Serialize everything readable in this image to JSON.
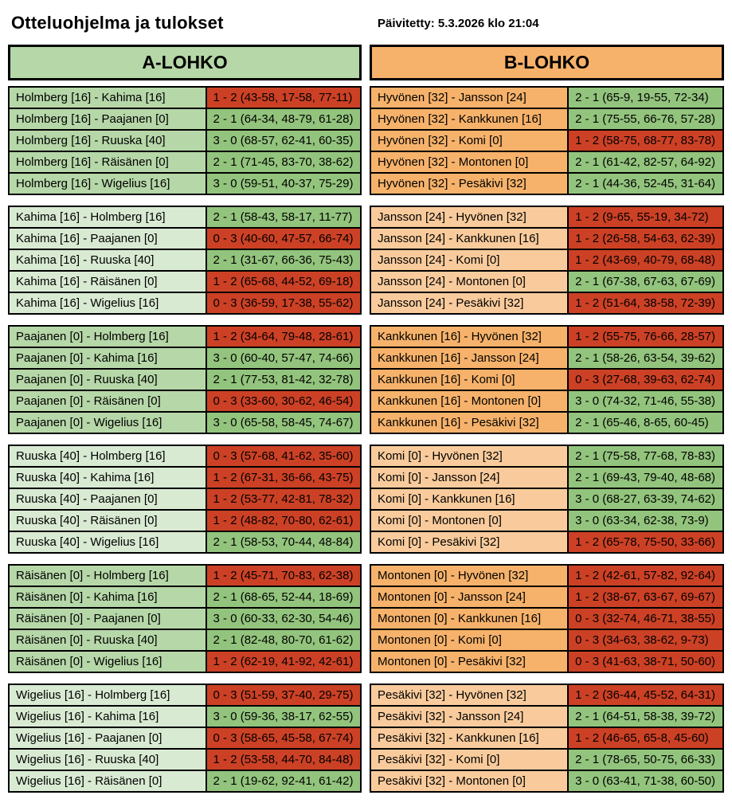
{
  "page": {
    "title": "Otteluohjelma ja tulokset",
    "updated": "Päivitetty: 5.3.2026 klo 21:04"
  },
  "colors": {
    "group_a_strong": "#b6d7a8",
    "group_a_light": "#d9ead3",
    "group_b_strong": "#f6b26b",
    "group_b_light": "#f9cb9c",
    "win_bg": "#93c47d",
    "loss_bg": "#cc4125",
    "border": "#000000",
    "text": "#000000"
  },
  "groups": [
    {
      "name": "A-LOHKO",
      "blocks": [
        {
          "rows": [
            {
              "match": "Holmberg [16] - Kahima [16]",
              "result": "1 - 2 (43-58, 17-58, 77-11)",
              "outcome": "loss"
            },
            {
              "match": "Holmberg [16] - Paajanen [0]",
              "result": "2 - 1 (64-34, 48-79, 61-28)",
              "outcome": "win"
            },
            {
              "match": "Holmberg [16] - Ruuska [40]",
              "result": "3 - 0 (68-57, 62-41, 60-35)",
              "outcome": "win"
            },
            {
              "match": "Holmberg [16] - Räisänen [0]",
              "result": "2 - 1 (71-45, 83-70, 38-62)",
              "outcome": "win"
            },
            {
              "match": "Holmberg [16] - Wigelius [16]",
              "result": "3 - 0 (59-51, 40-37, 75-29)",
              "outcome": "win"
            }
          ]
        },
        {
          "rows": [
            {
              "match": "Kahima [16] - Holmberg [16]",
              "result": "2 - 1 (58-43, 58-17, 11-77)",
              "outcome": "win"
            },
            {
              "match": "Kahima [16] - Paajanen [0]",
              "result": "0 - 3 (40-60, 47-57, 66-74)",
              "outcome": "loss"
            },
            {
              "match": "Kahima [16] - Ruuska [40]",
              "result": "2 - 1 (31-67, 66-36, 75-43)",
              "outcome": "win"
            },
            {
              "match": "Kahima [16] - Räisänen [0]",
              "result": "1 - 2 (65-68, 44-52, 69-18)",
              "outcome": "loss"
            },
            {
              "match": "Kahima [16] - Wigelius [16]",
              "result": "0 - 3 (36-59, 17-38, 55-62)",
              "outcome": "loss"
            }
          ]
        },
        {
          "rows": [
            {
              "match": "Paajanen [0] - Holmberg [16]",
              "result": "1 - 2 (34-64, 79-48, 28-61)",
              "outcome": "loss"
            },
            {
              "match": "Paajanen [0] - Kahima [16]",
              "result": "3 - 0 (60-40, 57-47, 74-66)",
              "outcome": "win"
            },
            {
              "match": "Paajanen [0] - Ruuska [40]",
              "result": "2 - 1 (77-53, 81-42, 32-78)",
              "outcome": "win"
            },
            {
              "match": "Paajanen [0] - Räisänen [0]",
              "result": "0 - 3 (33-60, 30-62, 46-54)",
              "outcome": "loss"
            },
            {
              "match": "Paajanen [0] - Wigelius [16]",
              "result": "3 - 0 (65-58, 58-45, 74-67)",
              "outcome": "win"
            }
          ]
        },
        {
          "rows": [
            {
              "match": "Ruuska [40] - Holmberg [16]",
              "result": "0 - 3 (57-68, 41-62, 35-60)",
              "outcome": "loss"
            },
            {
              "match": "Ruuska [40] - Kahima [16]",
              "result": "1 - 2 (67-31, 36-66, 43-75)",
              "outcome": "loss"
            },
            {
              "match": "Ruuska [40] - Paajanen [0]",
              "result": "1 - 2 (53-77, 42-81, 78-32)",
              "outcome": "loss"
            },
            {
              "match": "Ruuska [40] - Räisänen [0]",
              "result": "1 - 2 (48-82, 70-80, 62-61)",
              "outcome": "loss"
            },
            {
              "match": "Ruuska [40] - Wigelius [16]",
              "result": "2 - 1 (58-53, 70-44, 48-84)",
              "outcome": "win"
            }
          ]
        },
        {
          "rows": [
            {
              "match": "Räisänen [0] - Holmberg [16]",
              "result": "1 - 2 (45-71, 70-83, 62-38)",
              "outcome": "loss"
            },
            {
              "match": "Räisänen [0] - Kahima [16]",
              "result": "2 - 1 (68-65, 52-44, 18-69)",
              "outcome": "win"
            },
            {
              "match": "Räisänen [0] - Paajanen [0]",
              "result": "3 - 0 (60-33, 62-30, 54-46)",
              "outcome": "win"
            },
            {
              "match": "Räisänen [0] - Ruuska [40]",
              "result": "2 - 1 (82-48, 80-70, 61-62)",
              "outcome": "win"
            },
            {
              "match": "Räisänen [0] - Wigelius [16]",
              "result": "1 - 2 (62-19, 41-92, 42-61)",
              "outcome": "loss"
            }
          ]
        },
        {
          "rows": [
            {
              "match": "Wigelius [16] - Holmberg [16]",
              "result": "0 - 3 (51-59, 37-40, 29-75)",
              "outcome": "loss"
            },
            {
              "match": "Wigelius [16] - Kahima [16]",
              "result": "3 - 0 (59-36, 38-17, 62-55)",
              "outcome": "win"
            },
            {
              "match": "Wigelius [16] - Paajanen [0]",
              "result": "0 - 3 (58-65, 45-58, 67-74)",
              "outcome": "loss"
            },
            {
              "match": "Wigelius [16] - Ruuska [40]",
              "result": "1 - 2 (53-58, 44-70, 84-48)",
              "outcome": "loss"
            },
            {
              "match": "Wigelius [16] - Räisänen [0]",
              "result": "2 - 1 (19-62, 92-41, 61-42)",
              "outcome": "win"
            }
          ]
        }
      ]
    },
    {
      "name": "B-LOHKO",
      "blocks": [
        {
          "rows": [
            {
              "match": "Hyvönen [32] - Jansson [24]",
              "result": "2 - 1 (65-9, 19-55, 72-34)",
              "outcome": "win"
            },
            {
              "match": "Hyvönen [32] - Kankkunen [16]",
              "result": "2 - 1 (75-55, 66-76, 57-28)",
              "outcome": "win"
            },
            {
              "match": "Hyvönen [32] - Komi [0]",
              "result": "1 - 2 (58-75, 68-77, 83-78)",
              "outcome": "loss"
            },
            {
              "match": "Hyvönen [32] - Montonen [0]",
              "result": "2 - 1 (61-42, 82-57, 64-92)",
              "outcome": "win"
            },
            {
              "match": "Hyvönen [32] - Pesäkivi [32]",
              "result": "2 - 1 (44-36, 52-45, 31-64)",
              "outcome": "win"
            }
          ]
        },
        {
          "rows": [
            {
              "match": "Jansson [24] - Hyvönen [32]",
              "result": "1 - 2 (9-65, 55-19, 34-72)",
              "outcome": "loss"
            },
            {
              "match": "Jansson [24] - Kankkunen [16]",
              "result": "1 - 2 (26-58, 54-63, 62-39)",
              "outcome": "loss"
            },
            {
              "match": "Jansson [24] - Komi [0]",
              "result": "1 - 2 (43-69, 40-79, 68-48)",
              "outcome": "loss"
            },
            {
              "match": "Jansson [24] - Montonen [0]",
              "result": "2 - 1 (67-38, 67-63, 67-69)",
              "outcome": "win"
            },
            {
              "match": "Jansson [24] - Pesäkivi [32]",
              "result": "1 - 2 (51-64, 38-58, 72-39)",
              "outcome": "loss"
            }
          ]
        },
        {
          "rows": [
            {
              "match": "Kankkunen [16] - Hyvönen [32]",
              "result": "1 - 2 (55-75, 76-66, 28-57)",
              "outcome": "loss"
            },
            {
              "match": "Kankkunen [16] - Jansson [24]",
              "result": "2 - 1 (58-26, 63-54, 39-62)",
              "outcome": "win"
            },
            {
              "match": "Kankkunen [16] - Komi [0]",
              "result": "0 - 3 (27-68, 39-63, 62-74)",
              "outcome": "loss"
            },
            {
              "match": "Kankkunen [16] - Montonen [0]",
              "result": "3 - 0 (74-32, 71-46, 55-38)",
              "outcome": "win"
            },
            {
              "match": "Kankkunen [16] - Pesäkivi [32]",
              "result": "2 - 1 (65-46, 8-65, 60-45)",
              "outcome": "win"
            }
          ]
        },
        {
          "rows": [
            {
              "match": "Komi [0] - Hyvönen [32]",
              "result": "2 - 1 (75-58, 77-68, 78-83)",
              "outcome": "win"
            },
            {
              "match": "Komi [0] - Jansson [24]",
              "result": "2 - 1 (69-43, 79-40, 48-68)",
              "outcome": "win"
            },
            {
              "match": "Komi [0] - Kankkunen [16]",
              "result": "3 - 0 (68-27, 63-39, 74-62)",
              "outcome": "win"
            },
            {
              "match": "Komi [0] - Montonen [0]",
              "result": "3 - 0 (63-34, 62-38, 73-9)",
              "outcome": "win"
            },
            {
              "match": "Komi [0] - Pesäkivi [32]",
              "result": "1 - 2 (65-78, 75-50, 33-66)",
              "outcome": "loss"
            }
          ]
        },
        {
          "rows": [
            {
              "match": "Montonen [0] - Hyvönen [32]",
              "result": "1 - 2 (42-61, 57-82, 92-64)",
              "outcome": "loss"
            },
            {
              "match": "Montonen [0] - Jansson [24]",
              "result": "1 - 2 (38-67, 63-67, 69-67)",
              "outcome": "loss"
            },
            {
              "match": "Montonen [0] - Kankkunen [16]",
              "result": "0 - 3 (32-74, 46-71, 38-55)",
              "outcome": "loss"
            },
            {
              "match": "Montonen [0] - Komi [0]",
              "result": "0 - 3 (34-63, 38-62, 9-73)",
              "outcome": "loss"
            },
            {
              "match": "Montonen [0] - Pesäkivi [32]",
              "result": "0 - 3 (41-63, 38-71, 50-60)",
              "outcome": "loss"
            }
          ]
        },
        {
          "rows": [
            {
              "match": "Pesäkivi [32] - Hyvönen [32]",
              "result": "1 - 2 (36-44, 45-52, 64-31)",
              "outcome": "loss"
            },
            {
              "match": "Pesäkivi [32] - Jansson [24]",
              "result": "2 - 1 (64-51, 58-38, 39-72)",
              "outcome": "win"
            },
            {
              "match": "Pesäkivi [32] - Kankkunen [16]",
              "result": "1 - 2 (46-65, 65-8, 45-60)",
              "outcome": "loss"
            },
            {
              "match": "Pesäkivi [32] - Komi [0]",
              "result": "2 - 1 (78-65, 50-75, 66-33)",
              "outcome": "win"
            },
            {
              "match": "Pesäkivi [32] - Montonen [0]",
              "result": "3 - 0 (63-41, 71-38, 60-50)",
              "outcome": "win"
            }
          ]
        }
      ]
    }
  ]
}
